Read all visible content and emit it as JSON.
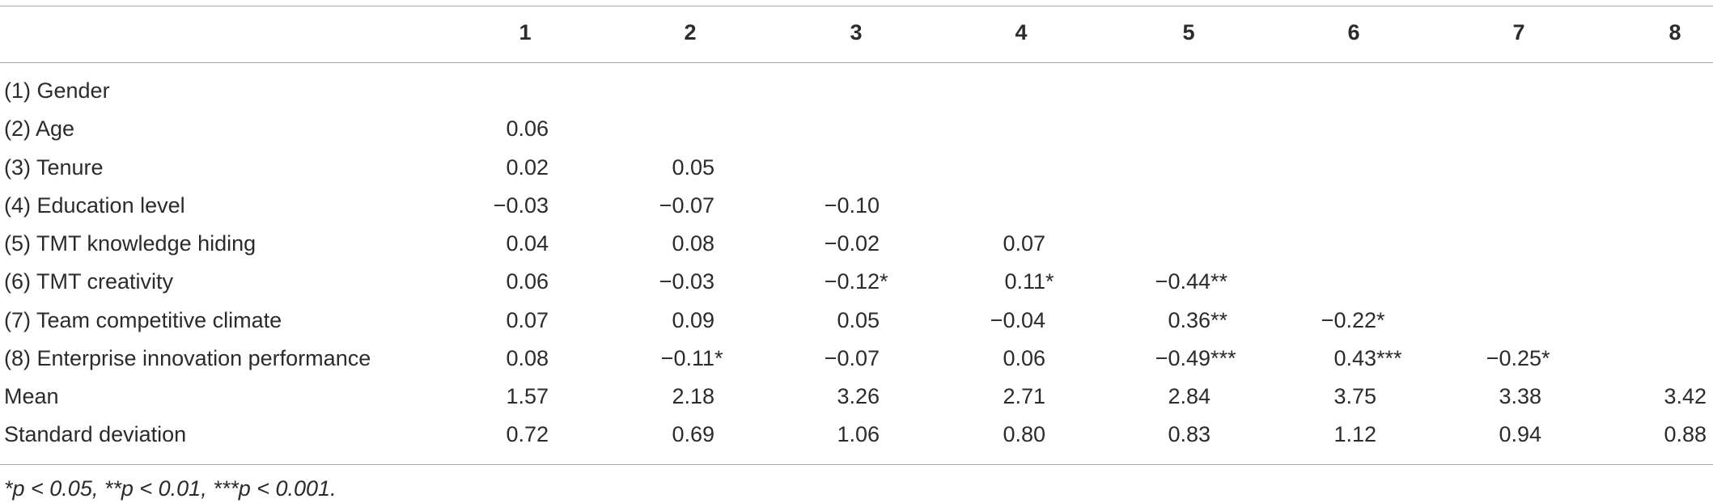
{
  "table": {
    "header": [
      "1",
      "2",
      "3",
      "4",
      "5",
      "6",
      "7",
      "8"
    ],
    "rows": [
      {
        "label": "(1) Gender",
        "cells": []
      },
      {
        "label": "(2) Age",
        "cells": [
          "0.06"
        ]
      },
      {
        "label": "(3) Tenure",
        "cells": [
          "0.02",
          "0.05"
        ]
      },
      {
        "label": "(4) Education level",
        "cells": [
          "−0.03",
          "−0.07",
          "−0.10"
        ]
      },
      {
        "label": "(5) TMT knowledge hiding",
        "cells": [
          "0.04",
          "0.08",
          "−0.02",
          "0.07"
        ]
      },
      {
        "label": "(6) TMT creativity",
        "cells": [
          "0.06",
          "−0.03",
          "−0.12*",
          "0.11*",
          "−0.44**"
        ]
      },
      {
        "label": "(7) Team competitive climate",
        "cells": [
          "0.07",
          "0.09",
          "0.05",
          "−0.04",
          "0.36**",
          "−0.22*"
        ]
      },
      {
        "label": "(8) Enterprise innovation performance",
        "cells": [
          "0.08",
          "−0.11*",
          "−0.07",
          "0.06",
          "−0.49***",
          "0.43***",
          "−0.25*"
        ]
      },
      {
        "label": "Mean",
        "cells": [
          "1.57",
          "2.18",
          "3.26",
          "2.71",
          "2.84",
          "3.75",
          "3.38",
          "3.42"
        ]
      },
      {
        "label": "Standard deviation",
        "cells": [
          "0.72",
          "0.69",
          "1.06",
          "0.80",
          "0.83",
          "1.12",
          "0.94",
          "0.88"
        ]
      }
    ],
    "footnote": "*p < 0.05, **p < 0.01, ***p < 0.001."
  }
}
